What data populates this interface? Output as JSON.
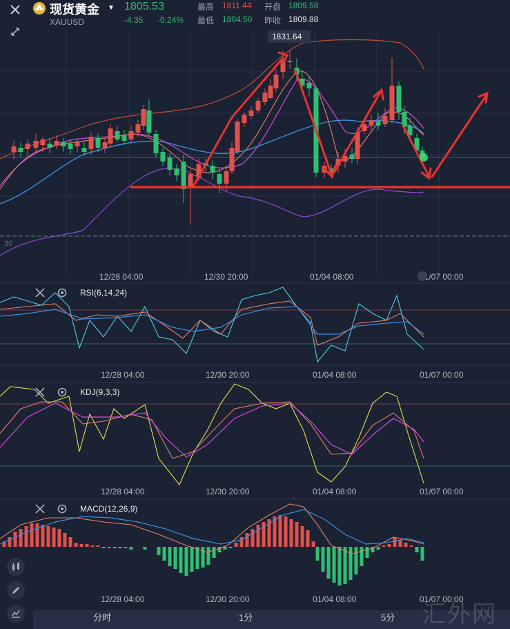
{
  "header": {
    "symbol_name": "现货黄金",
    "symbol_code": "XAUUSD",
    "last_price": "1805.53",
    "change": "-4.35",
    "change_pct": "-0.24%",
    "high_label": "最高",
    "high_value": "1811.44",
    "open_label": "开盘",
    "open_value": "1809.58",
    "low_label": "最低",
    "low_value": "1804.50",
    "prev_close_label": "昨收",
    "prev_close_value": "1809.88"
  },
  "main_chart": {
    "peak_price_label": "1831.64",
    "left_axis_label": "30",
    "time_labels": [
      "12/28 04:00",
      "12/30 20:00",
      "01/04 08:00",
      "01/07 00:00"
    ]
  },
  "indicators": {
    "rsi": {
      "label": "RSI(6,14,24)",
      "time_labels": [
        "12/28 04:00",
        "12/30 20:00",
        "01/04 08:00",
        "01/07 00:00"
      ]
    },
    "kdj": {
      "label": "KDJ(9,3,3)",
      "time_labels": [
        "12/28 04:00",
        "12/30 20:00",
        "01/04 08:00",
        "01/07 00:00"
      ]
    },
    "macd": {
      "label": "MACD(12,26,9)",
      "time_labels": [
        "12/28 04:00",
        "12/30 20:00",
        "01/04 08:00",
        "01/07 00:00"
      ]
    }
  },
  "bottom_tabs": [
    "分时",
    "1分",
    "5分"
  ],
  "watermark": "汇外网",
  "icons": {
    "close": "close-icon",
    "resize": "collapse-arrows-icon",
    "indicator_settings": "gear-icon",
    "indicator_close": "close-icon",
    "candle_type": "candlestick-icon",
    "draw": "pencil-icon",
    "indicators": "chart-line-icon"
  },
  "colors": {
    "background": "#1b2233",
    "up": "#e2504b",
    "down": "#2fbf71",
    "support_line": "#e8332f",
    "trend_arrows": "#e8332f"
  }
}
